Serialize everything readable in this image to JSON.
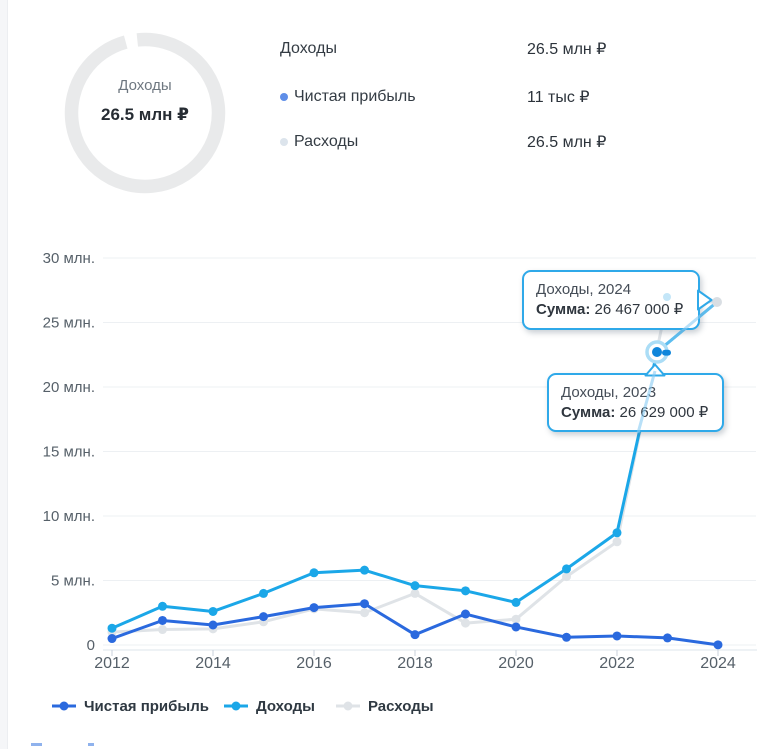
{
  "donut": {
    "center_label": "Доходы",
    "center_value": "26.5 млн ₽",
    "ring_color": "#e9eaeb"
  },
  "summary": {
    "rows": [
      {
        "label": "Доходы",
        "value": "26.5 млн ₽",
        "bullet_color": null
      },
      {
        "label": "Чистая прибыль",
        "value": "11 тыс ₽",
        "bullet_color": "#5f8ee8"
      },
      {
        "label": "Расходы",
        "value": "26.5 млн ₽",
        "bullet_color": "#dce4ec"
      }
    ]
  },
  "chart_data": [
    {
      "type": "donut",
      "title": "Доходы",
      "center_label": "Доходы",
      "center_value": "26.5 млн ₽",
      "slices": [
        {
          "label": "Доходы",
          "value_text": "26.5 млн ₽"
        }
      ]
    },
    {
      "type": "line",
      "x": [
        2012,
        2013,
        2014,
        2015,
        2016,
        2017,
        2018,
        2019,
        2020,
        2021,
        2022,
        2023,
        2024
      ],
      "x_tick_labels": [
        "2012",
        "2014",
        "2016",
        "2018",
        "2020",
        "2022",
        "2024"
      ],
      "x_tick_years": [
        2012,
        2014,
        2016,
        2018,
        2020,
        2022,
        2024
      ],
      "y_tick_labels": [
        "0",
        "5 млн.",
        "10 млн.",
        "15 млн.",
        "20 млн.",
        "25 млн.",
        "30 млн."
      ],
      "y_tick_values": [
        0,
        5,
        10,
        15,
        20,
        25,
        30
      ],
      "ylim": [
        0,
        30
      ],
      "unit": "млн ₽",
      "grid": true,
      "legend_position": "bottom",
      "series": [
        {
          "name": "Чистая прибыль",
          "color": "#2a69de",
          "values_mln": [
            0.5,
            1.9,
            1.55,
            2.2,
            2.9,
            3.2,
            0.8,
            2.4,
            1.4,
            0.6,
            0.7,
            0.55,
            0.011
          ]
        },
        {
          "name": "Доходы",
          "color": "#1ba7e8",
          "values_mln": [
            1.3,
            3.0,
            2.6,
            4.0,
            5.6,
            5.8,
            4.6,
            4.2,
            3.3,
            5.9,
            8.7,
            26.629,
            26.467
          ]
        },
        {
          "name": "Расходы",
          "color": "#dfe3e7",
          "values_mln": [
            1.0,
            1.2,
            1.25,
            1.8,
            2.8,
            2.5,
            4.0,
            1.7,
            2.0,
            5.3,
            8.0,
            26.6,
            26.5
          ]
        }
      ],
      "annotations": [
        {
          "series": "Доходы",
          "year": 2024,
          "sum_text": "26 467 000 ₽"
        },
        {
          "series": "Доходы",
          "year": 2023,
          "sum_text": "26 629 000 ₽"
        }
      ],
      "highlight": {
        "series": "Доходы",
        "year": 2023
      }
    }
  ],
  "tooltips": [
    {
      "title": "Доходы, 2024",
      "label": "Сумма:",
      "value": "26 467 000 ₽"
    },
    {
      "title": "Доходы, 2023",
      "label": "Сумма:",
      "value": "26 629 000 ₽"
    }
  ],
  "bottom_legend": [
    {
      "label": "Чистая прибыль",
      "color": "#2a69de"
    },
    {
      "label": "Доходы",
      "color": "#1ba7e8"
    },
    {
      "label": "Расходы",
      "color": "#dfe3e7"
    }
  ]
}
